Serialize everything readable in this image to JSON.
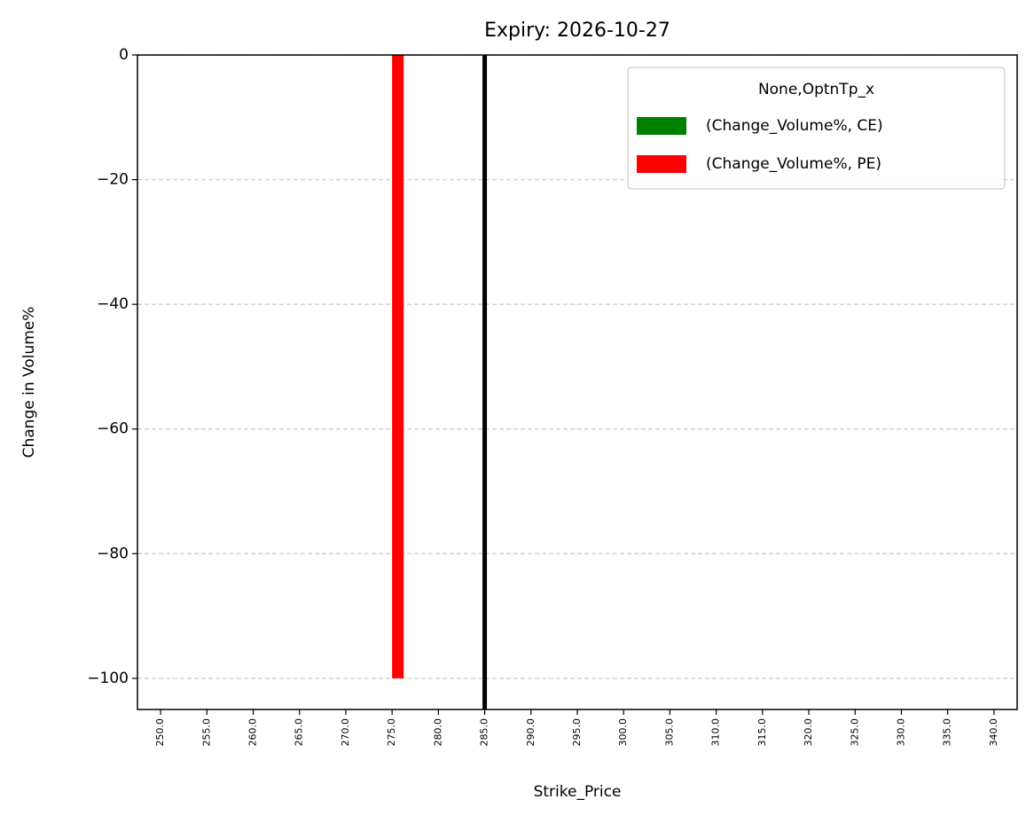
{
  "chart_data": {
    "type": "bar",
    "title": "Expiry: 2026-10-27",
    "xlabel": "Strike_Price",
    "ylabel": "Change in Volume%",
    "categories": [
      "250.0",
      "255.0",
      "260.0",
      "265.0",
      "270.0",
      "275.0",
      "280.0",
      "285.0",
      "290.0",
      "295.0",
      "300.0",
      "305.0",
      "310.0",
      "315.0",
      "320.0",
      "325.0",
      "330.0",
      "335.0",
      "340.0"
    ],
    "series": [
      {
        "name": "(Change_Volume%, CE)",
        "color": "#008000",
        "values": [
          null,
          null,
          null,
          null,
          null,
          null,
          null,
          null,
          null,
          null,
          null,
          null,
          null,
          null,
          null,
          null,
          null,
          null,
          null
        ]
      },
      {
        "name": "(Change_Volume%, PE)",
        "color": "#ff0000",
        "values": [
          null,
          null,
          null,
          null,
          null,
          -100,
          null,
          null,
          null,
          null,
          null,
          null,
          null,
          null,
          null,
          null,
          null,
          null,
          null
        ]
      }
    ],
    "legend_title": "None,OptnTp_x",
    "legend": "upper right",
    "vline": 285,
    "vline_color": "#000000",
    "ylim": [
      -105,
      0
    ],
    "yticks": [
      0,
      {
        "value": -20,
        "label": "−20"
      },
      {
        "value": -40,
        "label": "−40"
      },
      {
        "value": -60,
        "label": "−60"
      },
      {
        "value": -80,
        "label": "−80"
      },
      {
        "value": -100,
        "label": "−100"
      }
    ],
    "grid": true
  }
}
